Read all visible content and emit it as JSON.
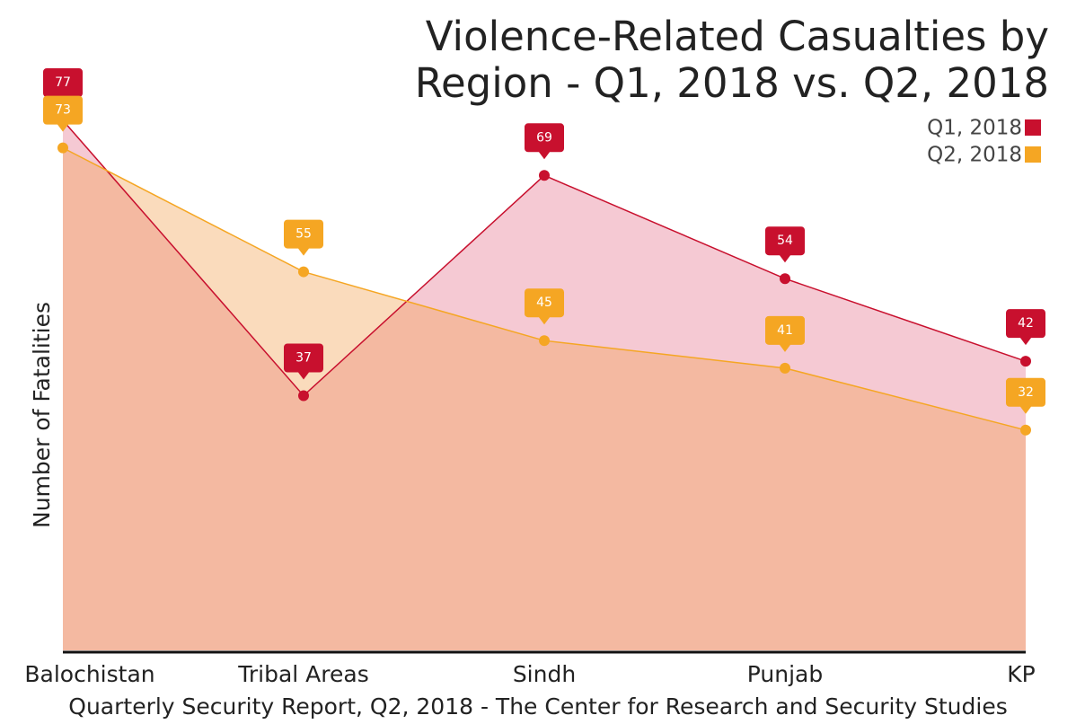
{
  "chart_data": {
    "type": "area",
    "title": [
      "Violence-Related Casualties by",
      "Region - Q1, 2018 vs. Q2, 2018"
    ],
    "y_label": "Number of Fatalities",
    "source": "Quarterly Security Report, Q2, 2018 - The Center for Research and Security Studies",
    "categories": [
      "Balochistan",
      "Tribal Areas",
      "Sindh",
      "Punjab",
      "KP"
    ],
    "series": [
      {
        "name": "Q1, 2018",
        "color": "#c8102e",
        "values": [
          77,
          37,
          69,
          54,
          42
        ]
      },
      {
        "name": "Q2, 2018",
        "color": "#f5a623",
        "values": [
          73,
          55,
          45,
          41,
          32
        ]
      }
    ],
    "ylim": [
      0,
      80
    ],
    "legend": "top-right"
  }
}
